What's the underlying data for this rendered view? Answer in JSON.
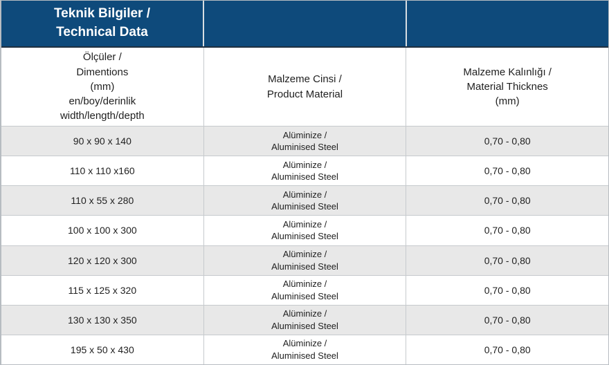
{
  "colors": {
    "header_bg": "#0E4A7B",
    "header_text": "#FFFFFF",
    "header_cell_divider": "#D8DEE2",
    "header_bottom_border": "#20303F",
    "row_alt_bg": "#E8E8E8",
    "row_bg": "#FFFFFF",
    "grid_border": "#C6CACD",
    "body_text": "#1F1F1F"
  },
  "table": {
    "title": "Teknik Bilgiler /\nTechnical Data",
    "column_headers": {
      "dimensions": "Ölçüler /\nDimentions\n(mm)\nen/boy/derinlik\nwidth/length/depth",
      "material": "Malzeme Cinsi /\nProduct Material",
      "thickness": "Malzeme Kalınlığı /\nMaterial Thicknes\n(mm)"
    },
    "rows": [
      {
        "dimensions": "90 x 90 x 140",
        "material": "Alüminize /\nAluminised Steel",
        "thickness": "0,70 - 0,80"
      },
      {
        "dimensions": "110 x 110 x160",
        "material": "Alüminize /\nAluminised Steel",
        "thickness": "0,70 - 0,80"
      },
      {
        "dimensions": "110 x 55 x 280",
        "material": "Alüminize /\nAluminised Steel",
        "thickness": "0,70 - 0,80"
      },
      {
        "dimensions": "100 x 100 x 300",
        "material": "Alüminize /\nAluminised Steel",
        "thickness": "0,70 - 0,80"
      },
      {
        "dimensions": "120 x 120 x 300",
        "material": "Alüminize /\nAluminised Steel",
        "thickness": "0,70 - 0,80"
      },
      {
        "dimensions": "115 x 125 x 320",
        "material": "Alüminize /\nAluminised Steel",
        "thickness": "0,70 - 0,80"
      },
      {
        "dimensions": "130 x 130 x 350",
        "material": "Alüminize /\nAluminised Steel",
        "thickness": "0,70 - 0,80"
      },
      {
        "dimensions": "195 x 50 x 430",
        "material": "Alüminize /\nAluminised Steel",
        "thickness": "0,70 - 0,80"
      }
    ]
  }
}
